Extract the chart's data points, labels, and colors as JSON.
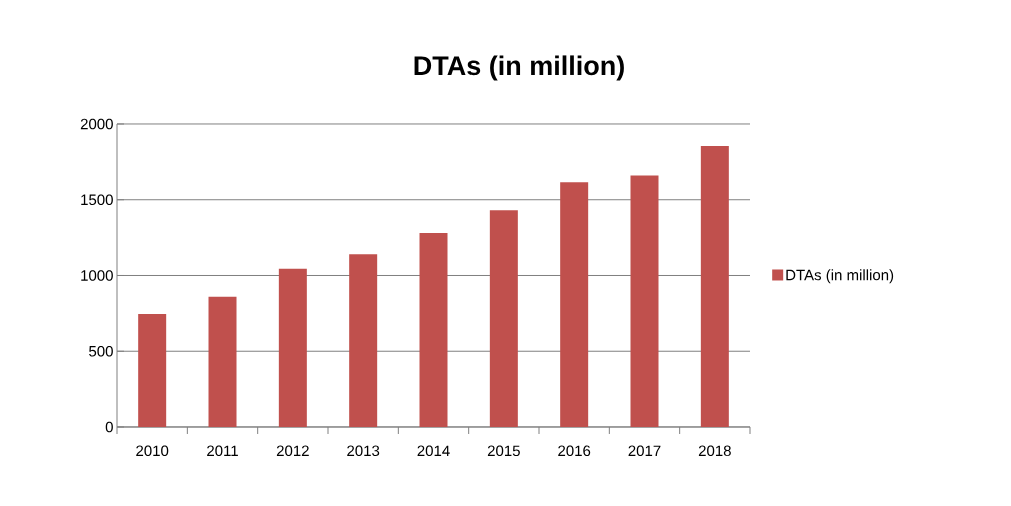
{
  "chart_data": {
    "type": "bar",
    "title": "DTAs (in million)",
    "categories": [
      "2010",
      "2011",
      "2012",
      "2013",
      "2014",
      "2015",
      "2016",
      "2017",
      "2018"
    ],
    "series": [
      {
        "name": "DTAs (in million)",
        "color": "#c0504d",
        "values": [
          745,
          860,
          1045,
          1140,
          1280,
          1430,
          1615,
          1660,
          1855
        ]
      }
    ],
    "ylim": [
      0,
      2000
    ],
    "yticks": [
      0,
      500,
      1000,
      1500,
      2000
    ],
    "grid": "y",
    "legend": "right"
  }
}
